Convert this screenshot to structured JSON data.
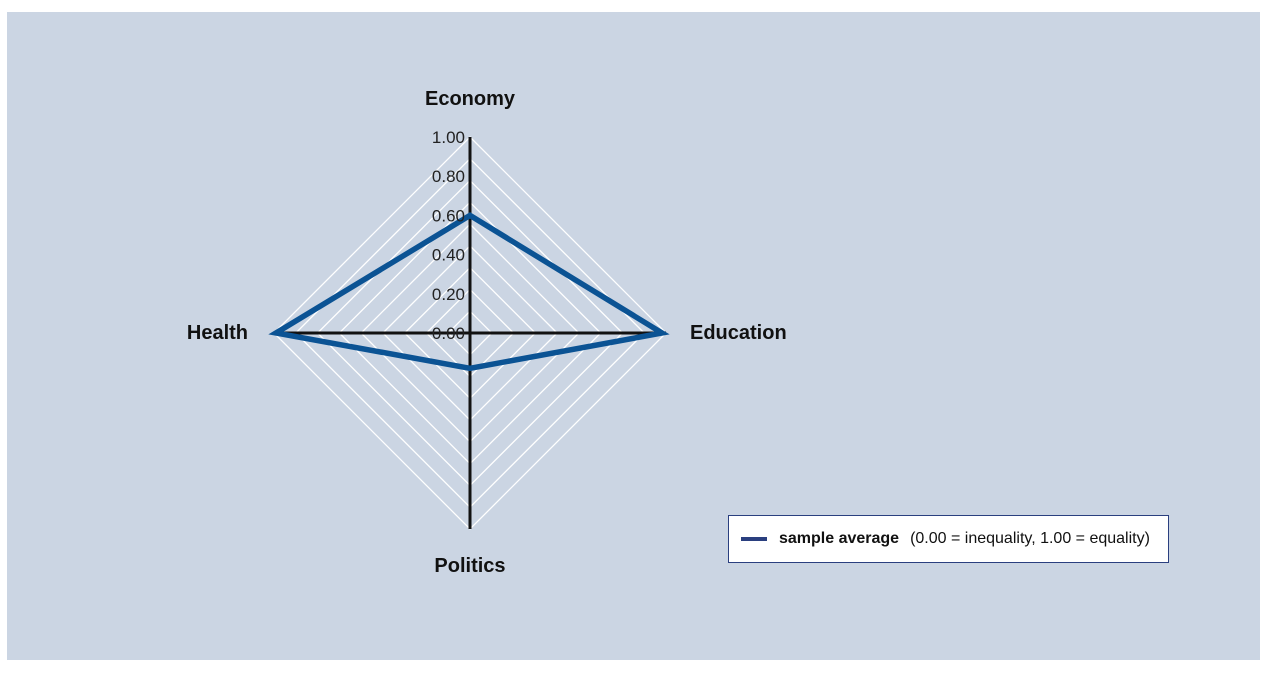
{
  "colors": {
    "panel_background": "#cbd5e3",
    "grid": "#ffffff",
    "axis": "#111111",
    "series": "#0b5394",
    "legend_border": "#2a3f7f"
  },
  "chart_data": {
    "type": "radar",
    "axes": [
      "Economy",
      "Education",
      "Politics",
      "Health"
    ],
    "range": [
      0,
      1
    ],
    "ticks": [
      "0.00",
      "0.20",
      "0.40",
      "0.60",
      "0.80",
      "1.00"
    ],
    "tick_values": [
      0,
      0.2,
      0.4,
      0.6,
      0.8,
      1.0
    ],
    "grid": true,
    "series": [
      {
        "name": "sample average",
        "values": [
          0.6,
          0.98,
          0.18,
          0.99
        ],
        "color": "#0b5394"
      }
    ],
    "legend": {
      "position": "bottom-right",
      "series_label": "sample average",
      "note": "(0.00 = inequality, 1.00 = equality)"
    }
  }
}
